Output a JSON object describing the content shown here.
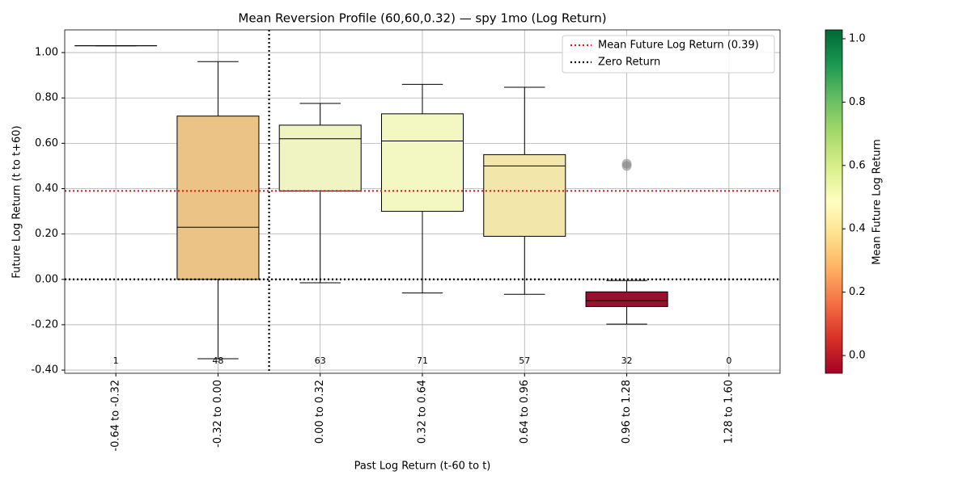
{
  "chart_data": {
    "type": "box",
    "title": "Mean Reversion Profile (60,60,0.32) — spy 1mo (Log Return)",
    "x_label": "Past Log Return (t-60 to t)",
    "y_label": "Future Log Return (t to t+60)",
    "categories": [
      "-0.64 to -0.32",
      "-0.32 to 0.00",
      "0.00 to 0.32",
      "0.32 to 0.64",
      "0.64 to 0.96",
      "0.96 to 1.28",
      "1.28 to 1.60"
    ],
    "boxes": [
      {
        "whislo": 1.03,
        "q1": 1.03,
        "med": 1.03,
        "q3": 1.03,
        "whishi": 1.03,
        "fliers": [],
        "n": 1
      },
      {
        "whislo": -0.35,
        "q1": 0.0,
        "med": 0.23,
        "q3": 0.72,
        "whishi": 0.96,
        "fliers": [],
        "n": 48
      },
      {
        "whislo": -0.015,
        "q1": 0.39,
        "med": 0.62,
        "q3": 0.68,
        "whishi": 0.776,
        "fliers": [],
        "n": 63
      },
      {
        "whislo": -0.06,
        "q1": 0.3,
        "med": 0.61,
        "q3": 0.73,
        "whishi": 0.86,
        "fliers": [],
        "n": 71
      },
      {
        "whislo": -0.066,
        "q1": 0.19,
        "med": 0.5,
        "q3": 0.55,
        "whishi": 0.847,
        "fliers": [],
        "n": 57
      },
      {
        "whislo": -0.197,
        "q1": -0.12,
        "med": -0.094,
        "q3": -0.055,
        "whishi": -0.005,
        "fliers": [
          0.51,
          0.5
        ],
        "n": 32
      },
      {
        "whislo": null,
        "q1": null,
        "med": null,
        "q3": null,
        "whishi": null,
        "fliers": [],
        "n": 0
      }
    ],
    "colors": [
      "#006837",
      "#ecc386",
      "#f0f4c2",
      "#f3f7c2",
      "#f2e6ab",
      "#9a0f2e",
      null
    ],
    "ylim": [
      -0.414,
      1.1
    ],
    "yticks": [
      {
        "value": -0.4,
        "label": "-0.40"
      },
      {
        "value": -0.2,
        "label": "-0.20"
      },
      {
        "value": 0,
        "label": "0.00"
      },
      {
        "value": 0.2,
        "label": "0.20"
      },
      {
        "value": 0.4,
        "label": "0.40"
      },
      {
        "value": 0.6,
        "label": "0.60"
      },
      {
        "value": 0.8,
        "label": "0.80"
      },
      {
        "value": 1.0,
        "label": "1.00"
      }
    ],
    "grid": true,
    "reference_lines": [
      {
        "name": "Mean Future Log Return (0.39)",
        "color": "#e41a1c",
        "y": 0.39
      },
      {
        "name": "Zero Return",
        "color": "#000000",
        "y": 0,
        "x": 1.5
      }
    ],
    "legend": "upper right",
    "colorbar": {
      "label": "Mean Future Log Return",
      "lim": [
        -0.056,
        1.028
      ],
      "ticks": [
        {
          "value": 0,
          "label": "0.0"
        },
        {
          "value": 0.2,
          "label": "0.2"
        },
        {
          "value": 0.4,
          "label": "0.4"
        },
        {
          "value": 0.6,
          "label": "0.6"
        },
        {
          "value": 0.8,
          "label": "0.8"
        },
        {
          "value": 1.0,
          "label": "1.0"
        }
      ]
    }
  }
}
